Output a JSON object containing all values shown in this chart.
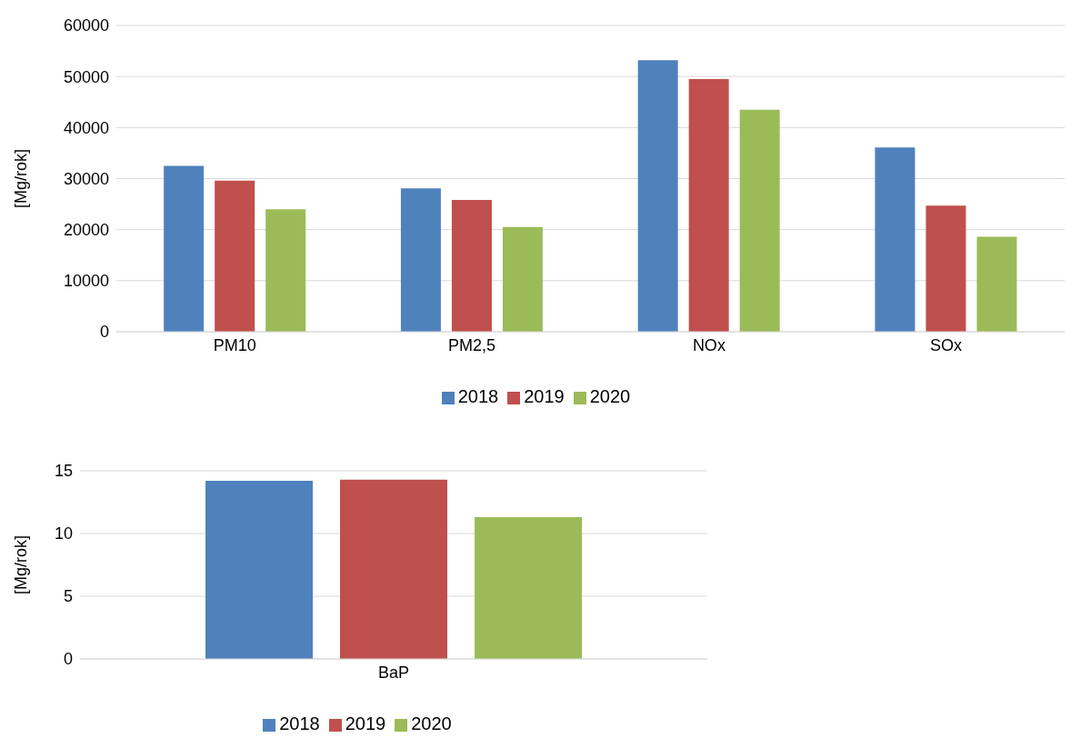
{
  "chart_data": [
    {
      "type": "bar",
      "ylabel": "[Mg/rok]",
      "categories": [
        "PM10",
        "PM2,5",
        "NOx",
        "SOx"
      ],
      "series": [
        {
          "name": "2018",
          "color": "#4f81bd",
          "values": [
            32500,
            28100,
            53200,
            36100
          ]
        },
        {
          "name": "2019",
          "color": "#c0504d",
          "values": [
            29600,
            25800,
            49500,
            24700
          ]
        },
        {
          "name": "2020",
          "color": "#9bbb59",
          "values": [
            24000,
            20500,
            43500,
            18600
          ]
        }
      ],
      "ylim": [
        0,
        60000
      ],
      "yticks": [
        0,
        10000,
        20000,
        30000,
        40000,
        50000,
        60000
      ],
      "grid": "y",
      "legend": "bottom"
    },
    {
      "type": "bar",
      "ylabel": "[Mg/rok]",
      "categories": [
        "BaP"
      ],
      "series": [
        {
          "name": "2018",
          "color": "#4f81bd",
          "values": [
            14.2
          ]
        },
        {
          "name": "2019",
          "color": "#c0504d",
          "values": [
            14.3
          ]
        },
        {
          "name": "2020",
          "color": "#9bbb59",
          "values": [
            11.3
          ]
        }
      ],
      "ylim": [
        0,
        15
      ],
      "yticks": [
        0,
        5,
        10,
        15
      ],
      "grid": "y",
      "legend": "bottom"
    }
  ]
}
